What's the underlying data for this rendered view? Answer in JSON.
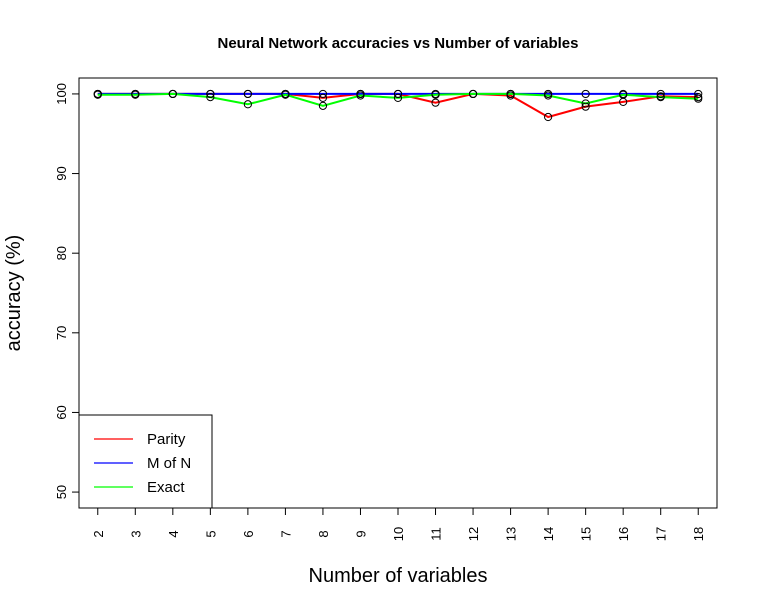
{
  "chart_data": {
    "type": "line",
    "title": "Neural Network accuracies vs Number of variables",
    "xlabel": "Number of variables",
    "ylabel": "accuracy (%)",
    "x": [
      2,
      3,
      4,
      5,
      6,
      7,
      8,
      9,
      10,
      11,
      12,
      13,
      14,
      15,
      16,
      17,
      18
    ],
    "xlim": [
      1.5,
      18.5
    ],
    "ylim": [
      48,
      102
    ],
    "yticks": [
      50,
      60,
      70,
      80,
      90,
      100
    ],
    "legend_position": "bottom-left",
    "series": [
      {
        "name": "Parity",
        "color": "#ff0000",
        "values": [
          100,
          100,
          100,
          100,
          100,
          100,
          99.5,
          100,
          100,
          98.9,
          100,
          99.8,
          97.1,
          98.4,
          99.0,
          99.7,
          99.6
        ]
      },
      {
        "name": "M of N",
        "color": "#0000ff",
        "values": [
          100,
          100,
          100,
          100,
          100,
          100,
          100,
          100,
          100,
          100,
          100,
          100,
          100,
          100,
          100,
          100,
          100
        ]
      },
      {
        "name": "Exact",
        "color": "#00ff00",
        "values": [
          99.9,
          99.9,
          100,
          99.6,
          98.7,
          99.9,
          98.5,
          99.8,
          99.5,
          99.9,
          100,
          100,
          99.8,
          98.8,
          99.9,
          99.6,
          99.4
        ]
      }
    ]
  }
}
